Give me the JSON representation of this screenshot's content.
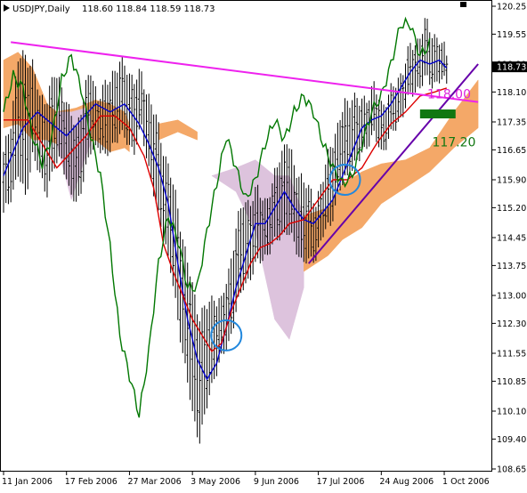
{
  "chart_data": {
    "type": "line",
    "title": "USDJPY,Daily",
    "ohlc_header": "118.60 118.84 118.59 118.73",
    "y_ticks": [
      "120.25",
      "119.55",
      "118.80",
      "118.10",
      "117.35",
      "116.65",
      "115.90",
      "115.20",
      "114.45",
      "113.75",
      "113.00",
      "112.30",
      "111.55",
      "110.85",
      "110.10",
      "109.40",
      "108.65"
    ],
    "y_tick_values": [
      120.25,
      119.55,
      118.8,
      118.1,
      117.35,
      116.65,
      115.9,
      115.2,
      114.45,
      113.75,
      113.0,
      112.3,
      111.55,
      110.85,
      110.1,
      109.4,
      108.65
    ],
    "x_ticks": [
      "11 Jan 2006",
      "17 Feb 2006",
      "27 Mar 2006",
      "3 May 2006",
      "9 Jun 2006",
      "17 Jul 2006",
      "24 Aug 2006",
      "1 Oct 2006"
    ],
    "x_tick_index": [
      0,
      26,
      52,
      78,
      104,
      130,
      156,
      182
    ],
    "ylim": [
      108.65,
      120.25
    ],
    "bar_count": 197,
    "current_price": "118.73",
    "current_value": 118.73,
    "price_bars": [
      [
        0,
        116.5,
        115.0
      ],
      [
        3,
        117.4,
        115.5
      ],
      [
        6,
        118.9,
        116.0
      ],
      [
        9,
        119.0,
        115.5
      ],
      [
        12,
        118.8,
        116.5
      ],
      [
        15,
        117.9,
        116.0
      ],
      [
        18,
        118.0,
        115.6
      ],
      [
        21,
        118.5,
        116.2
      ],
      [
        24,
        118.3,
        116.5
      ],
      [
        27,
        117.6,
        115.6
      ],
      [
        30,
        117.2,
        115.3
      ],
      [
        33,
        118.0,
        115.9
      ],
      [
        36,
        118.6,
        116.6
      ],
      [
        39,
        118.0,
        116.8
      ],
      [
        42,
        118.2,
        116.4
      ],
      [
        45,
        118.6,
        116.8
      ],
      [
        48,
        118.8,
        117.0
      ],
      [
        51,
        118.7,
        116.9
      ],
      [
        54,
        118.4,
        116.6
      ],
      [
        57,
        118.5,
        117.2
      ],
      [
        60,
        118.0,
        116.2
      ],
      [
        63,
        117.4,
        115.2
      ],
      [
        66,
        116.7,
        114.6
      ],
      [
        69,
        116.0,
        113.6
      ],
      [
        72,
        115.2,
        112.4
      ],
      [
        75,
        114.1,
        111.2
      ],
      [
        78,
        113.2,
        110.0
      ],
      [
        81,
        112.5,
        109.4
      ],
      [
        84,
        112.7,
        110.2
      ],
      [
        87,
        113.0,
        111.0
      ],
      [
        90,
        112.8,
        111.4
      ],
      [
        93,
        113.6,
        111.8
      ],
      [
        96,
        114.7,
        112.6
      ],
      [
        99,
        115.3,
        113.2
      ],
      [
        102,
        115.4,
        113.5
      ],
      [
        105,
        115.6,
        113.8
      ],
      [
        108,
        115.4,
        114.0
      ],
      [
        111,
        115.7,
        114.2
      ],
      [
        114,
        116.5,
        114.5
      ],
      [
        117,
        116.9,
        114.6
      ],
      [
        120,
        116.2,
        114.3
      ],
      [
        123,
        116.0,
        113.9
      ],
      [
        126,
        115.6,
        113.8
      ],
      [
        129,
        115.4,
        114.0
      ],
      [
        132,
        115.9,
        114.5
      ],
      [
        135,
        116.8,
        114.8
      ],
      [
        138,
        117.2,
        115.5
      ],
      [
        141,
        117.8,
        115.9
      ],
      [
        144,
        118.0,
        116.2
      ],
      [
        147,
        117.8,
        116.4
      ],
      [
        150,
        118.0,
        116.8
      ],
      [
        153,
        118.2,
        117.0
      ],
      [
        156,
        117.8,
        116.6
      ],
      [
        159,
        118.0,
        116.9
      ],
      [
        162,
        118.3,
        117.2
      ],
      [
        165,
        118.7,
        117.6
      ],
      [
        168,
        119.2,
        118.0
      ],
      [
        171,
        119.4,
        118.2
      ],
      [
        174,
        119.8,
        118.4
      ],
      [
        177,
        119.6,
        118.3
      ],
      [
        180,
        119.4,
        118.4
      ],
      [
        183,
        119.0,
        118.3
      ]
    ],
    "series": [
      {
        "color": "#0000cc",
        "points": [
          [
            0,
            116.0
          ],
          [
            8,
            117.2
          ],
          [
            14,
            117.6
          ],
          [
            20,
            117.3
          ],
          [
            26,
            117.0
          ],
          [
            32,
            117.4
          ],
          [
            38,
            117.8
          ],
          [
            44,
            117.6
          ],
          [
            50,
            117.8
          ],
          [
            56,
            117.3
          ],
          [
            60,
            116.8
          ],
          [
            64,
            116.2
          ],
          [
            68,
            115.3
          ],
          [
            72,
            113.8
          ],
          [
            76,
            112.4
          ],
          [
            80,
            111.4
          ],
          [
            84,
            110.9
          ],
          [
            88,
            111.3
          ],
          [
            92,
            112.2
          ],
          [
            96,
            113.2
          ],
          [
            100,
            114.0
          ],
          [
            104,
            114.8
          ],
          [
            108,
            114.8
          ],
          [
            112,
            115.2
          ],
          [
            116,
            115.6
          ],
          [
            120,
            115.2
          ],
          [
            124,
            114.9
          ],
          [
            128,
            114.8
          ],
          [
            132,
            115.1
          ],
          [
            136,
            115.4
          ],
          [
            140,
            116.0
          ],
          [
            144,
            116.6
          ],
          [
            148,
            117.2
          ],
          [
            152,
            117.4
          ],
          [
            156,
            117.5
          ],
          [
            160,
            117.8
          ],
          [
            164,
            118.2
          ],
          [
            168,
            118.6
          ],
          [
            172,
            118.9
          ],
          [
            176,
            118.8
          ],
          [
            180,
            118.9
          ],
          [
            183,
            118.7
          ]
        ]
      },
      {
        "color": "#dd0000",
        "points": [
          [
            0,
            117.4
          ],
          [
            10,
            117.4
          ],
          [
            16,
            116.8
          ],
          [
            22,
            116.2
          ],
          [
            28,
            116.6
          ],
          [
            34,
            117.0
          ],
          [
            40,
            117.5
          ],
          [
            46,
            117.5
          ],
          [
            52,
            117.2
          ],
          [
            58,
            116.5
          ],
          [
            62,
            115.7
          ],
          [
            66,
            114.3
          ],
          [
            70,
            113.6
          ],
          [
            74,
            113.0
          ],
          [
            78,
            112.4
          ],
          [
            82,
            112.0
          ],
          [
            86,
            111.6
          ],
          [
            90,
            111.8
          ],
          [
            94,
            112.6
          ],
          [
            98,
            113.2
          ],
          [
            102,
            113.8
          ],
          [
            106,
            114.2
          ],
          [
            110,
            114.3
          ],
          [
            114,
            114.5
          ],
          [
            118,
            114.8
          ],
          [
            124,
            114.9
          ],
          [
            130,
            115.4
          ],
          [
            136,
            115.9
          ],
          [
            142,
            115.9
          ],
          [
            148,
            116.2
          ],
          [
            154,
            116.8
          ],
          [
            160,
            117.3
          ],
          [
            166,
            117.6
          ],
          [
            172,
            118.0
          ],
          [
            178,
            118.1
          ],
          [
            183,
            118.2
          ]
        ]
      },
      {
        "color": "#007700",
        "points": [
          [
            0,
            117.6
          ],
          [
            4,
            118.5
          ],
          [
            8,
            118.2
          ],
          [
            12,
            117.0
          ],
          [
            16,
            116.3
          ],
          [
            20,
            117.0
          ],
          [
            24,
            118.4
          ],
          [
            28,
            119.0
          ],
          [
            32,
            118.2
          ],
          [
            36,
            117.0
          ],
          [
            40,
            116.0
          ],
          [
            44,
            114.2
          ],
          [
            48,
            112.0
          ],
          [
            52,
            111.0
          ],
          [
            56,
            110.0
          ],
          [
            60,
            111.6
          ],
          [
            64,
            113.8
          ],
          [
            68,
            115.0
          ],
          [
            72,
            114.4
          ],
          [
            76,
            113.2
          ],
          [
            80,
            113.2
          ],
          [
            84,
            114.6
          ],
          [
            88,
            115.8
          ],
          [
            92,
            117.0
          ],
          [
            96,
            116.2
          ],
          [
            100,
            115.4
          ],
          [
            104,
            115.9
          ],
          [
            108,
            116.8
          ],
          [
            112,
            117.4
          ],
          [
            116,
            116.9
          ],
          [
            120,
            117.6
          ],
          [
            124,
            118.0
          ],
          [
            128,
            117.6
          ],
          [
            132,
            116.8
          ],
          [
            136,
            116.2
          ],
          [
            140,
            115.8
          ],
          [
            144,
            116.0
          ],
          [
            148,
            116.8
          ],
          [
            152,
            117.6
          ],
          [
            156,
            118.0
          ],
          [
            160,
            118.8
          ],
          [
            164,
            119.8
          ],
          [
            168,
            119.8
          ],
          [
            172,
            119.0
          ],
          [
            176,
            119.3
          ]
        ]
      }
    ],
    "cloud_bands": [
      {
        "color": "#f4a868",
        "upper": [
          [
            0,
            118.9
          ],
          [
            6,
            119.1
          ],
          [
            12,
            118.7
          ],
          [
            18,
            117.8
          ],
          [
            22,
            117.6
          ],
          [
            30,
            117.7
          ],
          [
            38,
            117.9
          ],
          [
            44,
            117.8
          ],
          [
            50,
            117.6
          ],
          [
            52,
            117.3
          ]
        ],
        "lower": [
          [
            0,
            117.2
          ],
          [
            6,
            117.3
          ],
          [
            12,
            116.9
          ],
          [
            18,
            116.9
          ],
          [
            22,
            116.8
          ],
          [
            30,
            116.7
          ],
          [
            38,
            116.9
          ],
          [
            44,
            116.6
          ],
          [
            50,
            116.7
          ],
          [
            52,
            116.6
          ]
        ]
      },
      {
        "color": "#ddc3dd",
        "upper": [
          [
            22,
            117.6
          ],
          [
            28,
            117.6
          ],
          [
            34,
            117.7
          ],
          [
            36,
            117.5
          ]
        ],
        "lower": [
          [
            22,
            116.8
          ],
          [
            28,
            115.4
          ],
          [
            34,
            116.5
          ],
          [
            36,
            116.8
          ]
        ]
      },
      {
        "color": "#f4a868",
        "upper": [
          [
            64,
            117.3
          ],
          [
            72,
            117.4
          ],
          [
            80,
            117.1
          ]
        ],
        "lower": [
          [
            64,
            116.9
          ],
          [
            72,
            117.1
          ],
          [
            80,
            116.9
          ]
        ]
      },
      {
        "color": "#ddc3dd",
        "upper": [
          [
            86,
            116.0
          ],
          [
            96,
            116.2
          ],
          [
            104,
            116.4
          ],
          [
            112,
            116.0
          ],
          [
            118,
            116.0
          ],
          [
            124,
            115.0
          ]
        ],
        "lower": [
          [
            86,
            116.0
          ],
          [
            96,
            115.6
          ],
          [
            104,
            114.6
          ],
          [
            112,
            112.4
          ],
          [
            118,
            111.9
          ],
          [
            124,
            113.2
          ]
        ]
      },
      {
        "color": "#f4a868",
        "upper": [
          [
            124,
            115.0
          ],
          [
            134,
            115.2
          ],
          [
            140,
            115.8
          ],
          [
            148,
            116.1
          ],
          [
            156,
            116.3
          ],
          [
            166,
            116.4
          ],
          [
            176,
            116.7
          ],
          [
            186,
            117.6
          ],
          [
            196,
            118.4
          ]
        ],
        "lower": [
          [
            124,
            113.6
          ],
          [
            134,
            114.0
          ],
          [
            140,
            114.4
          ],
          [
            148,
            114.7
          ],
          [
            156,
            115.3
          ],
          [
            166,
            115.7
          ],
          [
            176,
            116.1
          ],
          [
            186,
            116.7
          ],
          [
            196,
            117.2
          ]
        ]
      }
    ],
    "trendlines": [
      {
        "color": "#ee22ee",
        "from": [
          3,
          119.35
        ],
        "to": [
          196,
          117.85
        ]
      },
      {
        "color": "#6600aa",
        "from": [
          126,
          113.8
        ],
        "to": [
          196,
          118.8
        ]
      }
    ],
    "annotations": [
      {
        "text": "118.00",
        "color": "#dd22dd",
        "x": 175,
        "y": 118.05
      },
      {
        "text": "117.20",
        "color": "#117711",
        "x": 177,
        "y": 116.85
      }
    ],
    "target_bar": {
      "color": "#117711",
      "x0": 172,
      "x1": 183,
      "y": 117.55
    },
    "circles": [
      {
        "x": 92,
        "y": 112.0
      },
      {
        "x": 141,
        "y": 115.9
      }
    ]
  }
}
